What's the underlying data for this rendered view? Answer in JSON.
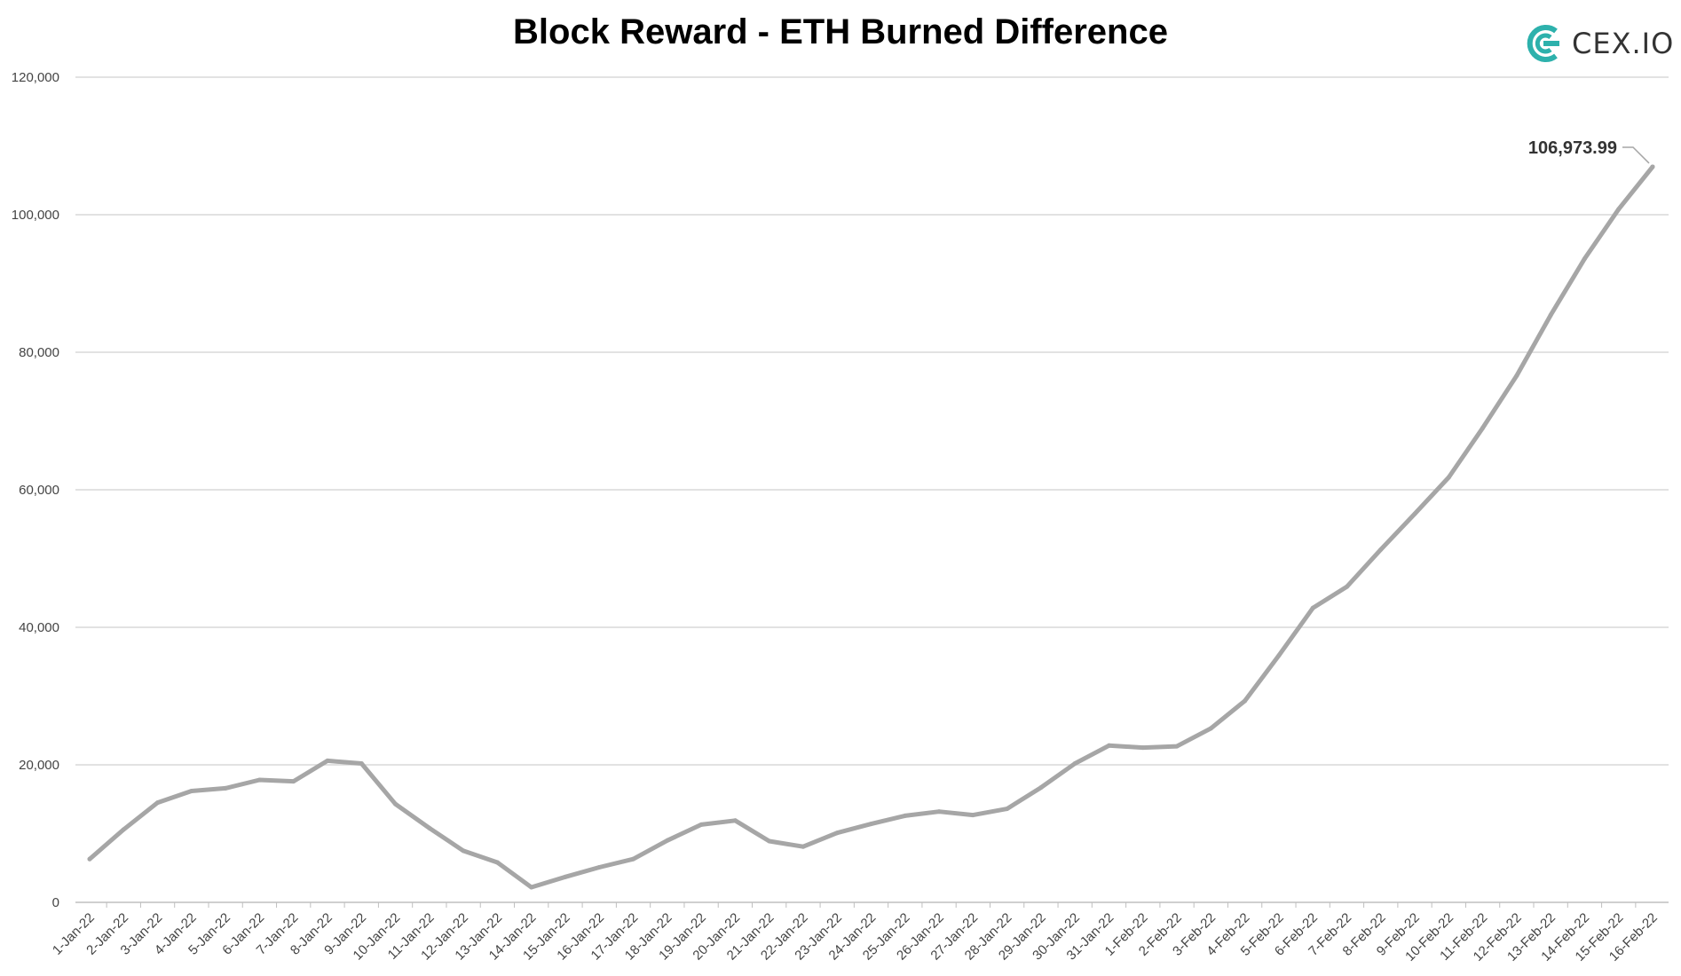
{
  "chart_data": {
    "type": "line",
    "title": "Block Reward - ETH Burned Difference",
    "xlabel": "",
    "ylabel": "",
    "ylim": [
      0,
      120000
    ],
    "yticks": [
      "0",
      "20,000",
      "40,000",
      "60,000",
      "80,000",
      "100,000",
      "120,000"
    ],
    "ytick_values": [
      0,
      20000,
      40000,
      60000,
      80000,
      100000,
      120000
    ],
    "grid": true,
    "categories": [
      "1-Jan-22",
      "2-Jan-22",
      "3-Jan-22",
      "4-Jan-22",
      "5-Jan-22",
      "6-Jan-22",
      "7-Jan-22",
      "8-Jan-22",
      "9-Jan-22",
      "10-Jan-22",
      "11-Jan-22",
      "12-Jan-22",
      "13-Jan-22",
      "14-Jan-22",
      "15-Jan-22",
      "16-Jan-22",
      "17-Jan-22",
      "18-Jan-22",
      "19-Jan-22",
      "20-Jan-22",
      "21-Jan-22",
      "22-Jan-22",
      "23-Jan-22",
      "24-Jan-22",
      "25-Jan-22",
      "26-Jan-22",
      "27-Jan-22",
      "28-Jan-22",
      "29-Jan-22",
      "30-Jan-22",
      "31-Jan-22",
      "1-Feb-22",
      "2-Feb-22",
      "3-Feb-22",
      "4-Feb-22",
      "5-Feb-22",
      "6-Feb-22",
      "7-Feb-22",
      "8-Feb-22",
      "9-Feb-22",
      "10-Feb-22",
      "11-Feb-22",
      "12-Feb-22",
      "13-Feb-22",
      "14-Feb-22",
      "15-Feb-22",
      "16-Feb-22"
    ],
    "series": [
      {
        "values": [
          6300,
          10600,
          14500,
          16200,
          16600,
          17800,
          17600,
          20600,
          20200,
          14300,
          10800,
          7500,
          5800,
          2200,
          3700,
          5100,
          6300,
          9000,
          11300,
          11900,
          8900,
          8100,
          10100,
          11400,
          12600,
          13200,
          12700,
          13600,
          16700,
          20200,
          22800,
          22500,
          22700,
          25300,
          29300,
          35900,
          42800,
          45900,
          51300,
          56500,
          61800,
          69000,
          76600,
          85400,
          93600,
          100800,
          106973.99
        ],
        "color": "#a6a6a6"
      }
    ],
    "annotations": [
      {
        "category": "16-Feb-22",
        "text": "106,973.99"
      }
    ]
  },
  "logo": {
    "text": "CEX.IO",
    "icon": "cex-logo-icon",
    "color": "#2db1ac"
  }
}
